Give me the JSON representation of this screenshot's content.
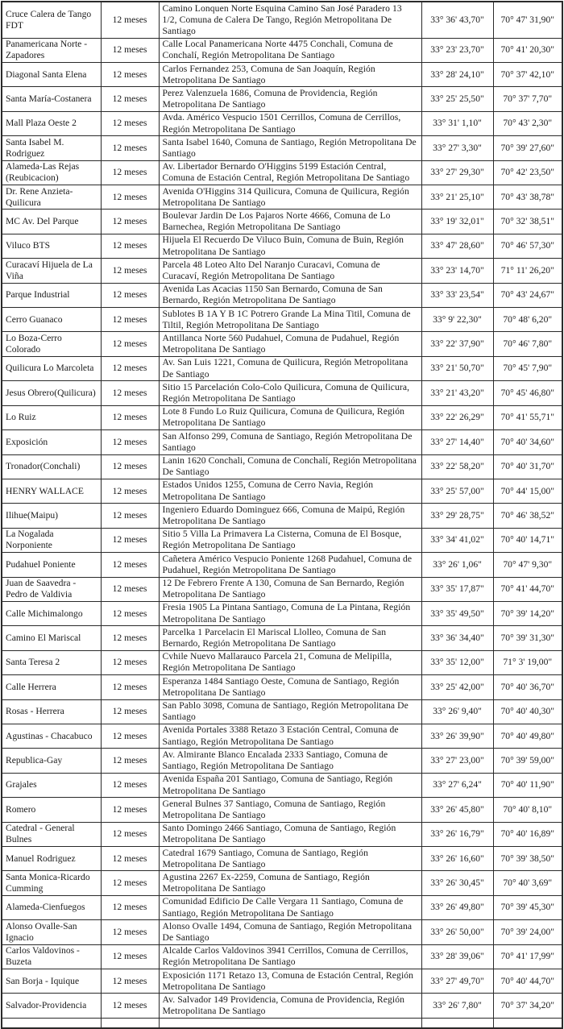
{
  "table": {
    "rows": [
      {
        "name": "Cruce Calera de Tango FDT",
        "duration": "12 meses",
        "address": "Camino Lonquen Norte Esquina Camino San José Paradero 13 1/2, Comuna de Calera De Tango, Región Metropolitana De Santiago",
        "latitude": "33° 36' 43,70\"",
        "longitude": "70° 47' 31,90\""
      },
      {
        "name": "Panamericana Norte - Zapadores",
        "duration": "12 meses",
        "address": "Calle Local Panamericana Norte 4475 Conchali, Comuna de Conchalí, Región Metropolitana De Santiago",
        "latitude": "33° 23' 23,70\"",
        "longitude": "70° 41' 20,30\""
      },
      {
        "name": "Diagonal Santa Elena",
        "duration": "12 meses",
        "address": "Carlos Fernandez 253, Comuna de San Joaquín, Región Metropolitana De Santiago",
        "latitude": "33° 28' 24,10\"",
        "longitude": "70° 37' 42,10\""
      },
      {
        "name": "Santa María-Costanera",
        "duration": "12 meses",
        "address": "Perez Valenzuela 1686, Comuna de Providencia, Región Metropolitana De Santiago",
        "latitude": "33° 25' 25,50\"",
        "longitude": "70° 37' 7,70\""
      },
      {
        "name": "Mall Plaza Oeste 2",
        "duration": "12 meses",
        "address": "Avda. Américo Vespucio 1501 Cerrillos, Comuna de Cerrillos, Región Metropolitana De Santiago",
        "latitude": "33° 31' 1,10\"",
        "longitude": "70° 43' 2,30\""
      },
      {
        "name": "Santa Isabel M. Rodriguez",
        "duration": "12 meses",
        "address": "Santa Isabel 1640, Comuna de Santiago, Región Metropolitana De Santiago",
        "latitude": "33° 27' 3,30\"",
        "longitude": "70° 39' 27,60\""
      },
      {
        "name": "Alameda-Las Rejas (Reubicacion)",
        "duration": "12 meses",
        "address": "Av. Libertador Bernardo O'Higgins 5199 Estación Central, Comuna de Estación Central, Región Metropolitana De Santiago",
        "latitude": "33° 27' 29,30\"",
        "longitude": "70° 42' 23,50\""
      },
      {
        "name": "Dr. Rene Anzieta-Quilicura",
        "duration": "12 meses",
        "address": "Avenida O'Higgins 314 Quilicura, Comuna de Quilicura, Región Metropolitana De Santiago",
        "latitude": "33° 21' 25,10\"",
        "longitude": "70° 43' 38,78\""
      },
      {
        "name": "MC Av. Del Parque",
        "duration": "12 meses",
        "address": "Boulevar Jardin De Los Pajaros Norte 4666, Comuna de Lo Barnechea, Región Metropolitana De Santiago",
        "latitude": "33° 19' 32,01\"",
        "longitude": "70° 32' 38,51\""
      },
      {
        "name": "Viluco BTS",
        "duration": "12 meses",
        "address": "Hijuela El Recuerdo De Viluco Buin, Comuna de Buin, Región Metropolitana De Santiago",
        "latitude": "33° 47' 28,60\"",
        "longitude": "70° 46' 57,30\""
      },
      {
        "name": "Curacaví Hijuela de La Viña",
        "duration": "12 meses",
        "address": "Parcela 48 Loteo Alto Del Naranjo Curacavi, Comuna de Curacaví, Región Metropolitana De Santiago",
        "latitude": "33° 23' 14,70\"",
        "longitude": "71° 11' 26,20\""
      },
      {
        "name": "Parque Industrial",
        "duration": "12 meses",
        "address": "Avenida Las Acacias 1150 San Bernardo, Comuna de San Bernardo, Región Metropolitana De Santiago",
        "latitude": "33° 33' 23,54\"",
        "longitude": "70° 43' 24,67\""
      },
      {
        "name": "Cerro Guanaco",
        "duration": "12 meses",
        "address": "Sublotes B 1A Y B 1C Potrero Grande La Mina Titil, Comuna de Tiltil, Región Metropolitana De Santiago",
        "latitude": "33° 9' 22,30\"",
        "longitude": "70° 48' 6,20\""
      },
      {
        "name": "Lo Boza-Cerro Colorado",
        "duration": "12 meses",
        "address": "Antillanca Norte 560 Pudahuel, Comuna de Pudahuel, Región Metropolitana De Santiago",
        "latitude": "33° 22' 37,90\"",
        "longitude": "70° 46' 7,80\""
      },
      {
        "name": "Quilicura Lo Marcoleta",
        "duration": "12 meses",
        "address": "Av. San Luis 1221, Comuna de Quilicura, Región Metropolitana De Santiago",
        "latitude": "33° 21' 50,70\"",
        "longitude": "70° 45' 7,90\""
      },
      {
        "name": "Jesus Obrero(Quilicura)",
        "duration": "12 meses",
        "address": "Sitio 15 Parcelación Colo-Colo Quilicura, Comuna de Quilicura, Región Metropolitana De Santiago",
        "latitude": "33° 21' 43,20\"",
        "longitude": "70° 45' 46,80\""
      },
      {
        "name": "Lo Ruiz",
        "duration": "12 meses",
        "address": "Lote 8 Fundo Lo Ruiz Quilicura, Comuna de Quilicura, Región Metropolitana De Santiago",
        "latitude": "33° 22' 26,29\"",
        "longitude": "70° 41' 55,71\""
      },
      {
        "name": "Exposición",
        "duration": "12 meses",
        "address": "San Alfonso 299, Comuna de Santiago, Región Metropolitana De Santiago",
        "latitude": "33° 27' 14,40\"",
        "longitude": "70° 40' 34,60\""
      },
      {
        "name": "Tronador(Conchali)",
        "duration": "12 meses",
        "address": "Lanin 1620 Conchali, Comuna de Conchalí, Región Metropolitana De Santiago",
        "latitude": "33° 22' 58,20\"",
        "longitude": "70° 40' 31,70\""
      },
      {
        "name": "HENRY WALLACE",
        "duration": "12 meses",
        "address": "Estados Unidos 1255, Comuna de Cerro Navia, Región Metropolitana De Santiago",
        "latitude": "33° 25' 57,00\"",
        "longitude": "70° 44' 15,00\""
      },
      {
        "name": "Ilihue(Maipu)",
        "duration": "12 meses",
        "address": "Ingeniero Eduardo Dominguez 666, Comuna de Maipú, Región Metropolitana De Santiago",
        "latitude": "33° 29' 28,75\"",
        "longitude": "70° 46' 38,52\""
      },
      {
        "name": "La Nogalada Norponiente",
        "duration": "12 meses",
        "address": "Sitio 5 Villa La Primavera La Cisterna, Comuna de El Bosque, Región Metropolitana De Santiago",
        "latitude": "33° 34' 41,02\"",
        "longitude": "70° 40' 14,71\""
      },
      {
        "name": "Pudahuel Poniente",
        "duration": "12 meses",
        "address": "Cañetera Américo Vespucio Poniente 1268 Pudahuel, Comuna de Pudahuel, Región Metropolitana De Santiago",
        "latitude": "33° 26' 1,06\"",
        "longitude": "70° 47' 9,30\""
      },
      {
        "name": "Juan de Saavedra - Pedro de Valdivia",
        "duration": "12 meses",
        "address": "12 De Febrero Frente A 130, Comuna de San Bernardo, Región Metropolitana De Santiago",
        "latitude": "33° 35' 17,87\"",
        "longitude": "70° 41' 44,70\""
      },
      {
        "name": "Calle Michimalongo",
        "duration": "12 meses",
        "address": "Fresia 1905 La Pintana Santiago, Comuna de La Pintana, Región Metropolitana De Santiago",
        "latitude": "33° 35' 49,50\"",
        "longitude": "70° 39' 14,20\""
      },
      {
        "name": "Camino El Mariscal",
        "duration": "12 meses",
        "address": "Parcelka 1 Parcelacin El Mariscal Llolleo, Comuna de San Bernardo, Región Metropolitana De Santiago",
        "latitude": "33° 36' 34,40\"",
        "longitude": "70° 39' 31,30\""
      },
      {
        "name": "Santa Teresa 2",
        "duration": "12 meses",
        "address": "Cvhile Nuevo Mallarauco Parcela 21, Comuna de Melipilla, Región Metropolitana De Santiago",
        "latitude": "33° 35' 12,00\"",
        "longitude": "71° 3' 19,00\""
      },
      {
        "name": "Calle Herrera",
        "duration": "12 meses",
        "address": "Esperanza 1484 Santiago Oeste, Comuna de Santiago, Región Metropolitana De Santiago",
        "latitude": "33° 25' 42,00\"",
        "longitude": "70° 40' 36,70\""
      },
      {
        "name": "Rosas - Herrera",
        "duration": "12 meses",
        "address": "San Pablo 3098, Comuna de Santiago, Región Metropolitana De Santiago",
        "latitude": "33° 26' 9,40\"",
        "longitude": "70° 40' 40,30\""
      },
      {
        "name": "Agustinas - Chacabuco",
        "duration": "12 meses",
        "address": "Avenida Portales 3388 Retazo 3 Estación Central, Comuna de Santiago, Región Metropolitana De Santiago",
        "latitude": "33° 26' 39,90\"",
        "longitude": "70° 40' 49,80\""
      },
      {
        "name": "Republica-Gay",
        "duration": "12 meses",
        "address": "Av. Almirante Blanco Encalada 2333 Santiago, Comuna de Santiago, Región Metropolitana De Santiago",
        "latitude": "33° 27' 23,00\"",
        "longitude": "70° 39' 59,00\""
      },
      {
        "name": "Grajales",
        "duration": "12 meses",
        "address": "Avenida España 201 Santiago, Comuna de Santiago, Región Metropolitana De Santiago",
        "latitude": "33° 27' 6,24\"",
        "longitude": "70° 40' 11,90\""
      },
      {
        "name": "Romero",
        "duration": "12 meses",
        "address": "General Bulnes 37 Santiago, Comuna de Santiago, Región Metropolitana De Santiago",
        "latitude": "33° 26' 45,80\"",
        "longitude": "70° 40' 8,10\""
      },
      {
        "name": "Catedral - General Bulnes",
        "duration": "12 meses",
        "address": "Santo Domingo 2466 Santiago, Comuna de Santiago, Región Metropolitana De Santiago",
        "latitude": "33° 26' 16,79\"",
        "longitude": "70° 40' 16,89\""
      },
      {
        "name": "Manuel Rodriguez",
        "duration": "12 meses",
        "address": "Catedral 1679 Santiago, Comuna de Santiago, Región Metropolitana De Santiago",
        "latitude": "33° 26' 16,60\"",
        "longitude": "70° 39' 38,50\""
      },
      {
        "name": "Santa Monica-Ricardo Cumming",
        "duration": "12 meses",
        "address": "Agustina 2267 Ex-2259, Comuna de Santiago, Región Metropolitana De Santiago",
        "latitude": "33° 26' 30,45\"",
        "longitude": "70° 40' 3,69\""
      },
      {
        "name": "Alameda-Cienfuegos",
        "duration": "12 meses",
        "address": "Comunidad Edificio De Calle Vergara 11 Santiago, Comuna de Santiago, Región Metropolitana De Santiago",
        "latitude": "33° 26' 49,80\"",
        "longitude": "70° 39' 45,30\""
      },
      {
        "name": "Alonso Ovalle-San Ignacio",
        "duration": "12 meses",
        "address": "Alonso Ovalle 1494, Comuna de Santiago, Región Metropolitana De Santiago",
        "latitude": "33° 26' 50,00\"",
        "longitude": "70° 39' 24,00\""
      },
      {
        "name": "Carlos Valdovinos - Buzeta",
        "duration": "12 meses",
        "address": "Alcalde Carlos Valdovinos 3941 Cerrillos, Comuna de Cerrillos, Región Metropolitana De Santiago",
        "latitude": "33° 28' 39,06\"",
        "longitude": "70° 41' 17,99\""
      },
      {
        "name": "San Borja - Iquique",
        "duration": "12 meses",
        "address": "Exposición 1171 Retazo 13, Comuna de Estación Central, Región Metropolitana De Santiago",
        "latitude": "33° 27' 49,70\"",
        "longitude": "70° 40' 44,70\""
      },
      {
        "name": "Salvador-Providencia",
        "duration": "12 meses",
        "address": "Av. Salvador 149 Providencia, Comuna de Providencia, Región Metropolitana De Santiago",
        "latitude": "33° 26' 7,80\"",
        "longitude": "70° 37' 34,20\""
      }
    ]
  }
}
